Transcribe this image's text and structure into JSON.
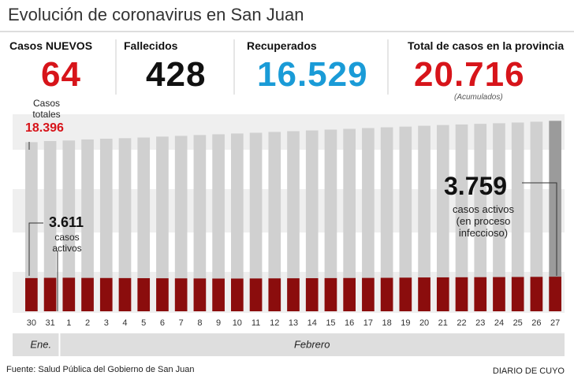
{
  "title": "Evolución de coronavirus en San Juan",
  "stats": [
    {
      "label": "Casos NUEVOS",
      "value": "64",
      "color": "#d7141a"
    },
    {
      "label": "Fallecidos",
      "value": "428",
      "color": "#111111"
    },
    {
      "label": "Recuperados",
      "value": "16.529",
      "color": "#1a9bd7"
    },
    {
      "label": "Total de casos en la provincia",
      "value": "20.716",
      "color": "#d7141a",
      "note": "(Acumulados)"
    }
  ],
  "chart_data": {
    "type": "bar",
    "categories": [
      "30",
      "31",
      "1",
      "2",
      "3",
      "4",
      "5",
      "6",
      "7",
      "8",
      "9",
      "10",
      "11",
      "12",
      "13",
      "14",
      "15",
      "16",
      "17",
      "18",
      "19",
      "20",
      "21",
      "22",
      "23",
      "24",
      "25",
      "26",
      "27"
    ],
    "x_groups": [
      {
        "label": "Ene.",
        "start": 0
      },
      {
        "label": "Febrero",
        "start": 2
      }
    ],
    "ylim": [
      0,
      21000
    ],
    "series": [
      {
        "name": "Casos totales",
        "color": "#d0d0d0",
        "last_color": "#9b9b9b",
        "values": [
          18396,
          18520,
          18580,
          18690,
          18770,
          18830,
          18900,
          19000,
          19080,
          19170,
          19250,
          19340,
          19420,
          19510,
          19590,
          19670,
          19760,
          19840,
          19930,
          20010,
          20090,
          20180,
          20260,
          20320,
          20390,
          20450,
          20530,
          20620,
          20716
        ],
        "value_labels": [
          "18.396",
          null,
          null,
          null,
          null,
          null,
          null,
          null,
          null,
          null,
          null,
          null,
          null,
          null,
          null,
          null,
          null,
          null,
          null,
          null,
          null,
          null,
          null,
          null,
          null,
          null,
          null,
          null,
          null
        ]
      },
      {
        "name": "casos activos",
        "color": "#8b0d0d",
        "values": [
          3611,
          3640,
          3650,
          3630,
          3620,
          3610,
          3600,
          3590,
          3580,
          3570,
          3560,
          3560,
          3570,
          3580,
          3590,
          3600,
          3610,
          3620,
          3630,
          3640,
          3660,
          3680,
          3690,
          3700,
          3710,
          3720,
          3730,
          3745,
          3759
        ],
        "value_labels": [
          "3.611",
          null,
          null,
          null,
          null,
          null,
          null,
          null,
          null,
          null,
          null,
          null,
          null,
          null,
          null,
          null,
          null,
          null,
          null,
          null,
          null,
          null,
          null,
          null,
          null,
          null,
          null,
          null,
          "3.759"
        ],
        "note": "(en proceso infeccioso)"
      }
    ]
  },
  "source": "Fuente: Salud Pública del Gobierno de San Juan",
  "brand": "DIARIO DE CUYO"
}
